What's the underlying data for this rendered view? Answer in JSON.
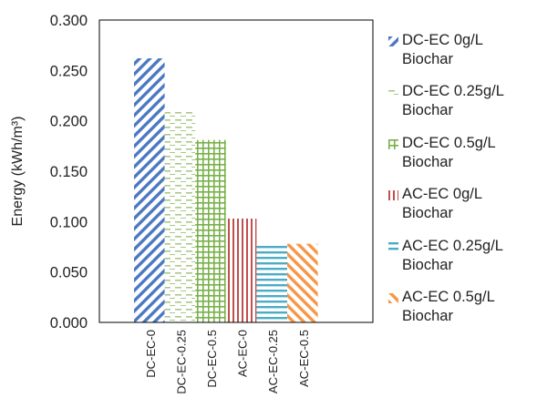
{
  "chart_data": {
    "type": "bar",
    "ylabel": "Energy (kWh/m³)",
    "ylim": [
      0,
      0.3
    ],
    "yticks": [
      "0.000",
      "0.050",
      "0.100",
      "0.150",
      "0.200",
      "0.250",
      "0.300"
    ],
    "categories": [
      "DC-EC-0",
      "DC-EC-0.25",
      "DC-EC-0.5",
      "AC-EC-0",
      "AC-EC-0.25",
      "AC-EC-0.5"
    ],
    "values": [
      0.262,
      0.209,
      0.181,
      0.103,
      0.078,
      0.078
    ],
    "series": [
      {
        "name": "DC-EC 0g/L Biochar",
        "color": "#4a78c2",
        "pattern": "diagonal-up"
      },
      {
        "name": "DC-EC 0.25g/L Biochar",
        "color": "#a9c98a",
        "pattern": "dashed-horizontal"
      },
      {
        "name": "DC-EC 0.5g/L Biochar",
        "color": "#78b048",
        "pattern": "grid"
      },
      {
        "name": "AC-EC 0g/L Biochar",
        "color": "#c0504d",
        "pattern": "vertical-lines"
      },
      {
        "name": "AC-EC 0.25g/L Biochar",
        "color": "#4bacc6",
        "pattern": "horizontal-lines"
      },
      {
        "name": "AC-EC 0.5g/L Biochar",
        "color": "#f79646",
        "pattern": "diagonal-down"
      }
    ],
    "grid": false,
    "legend_position": "right"
  }
}
